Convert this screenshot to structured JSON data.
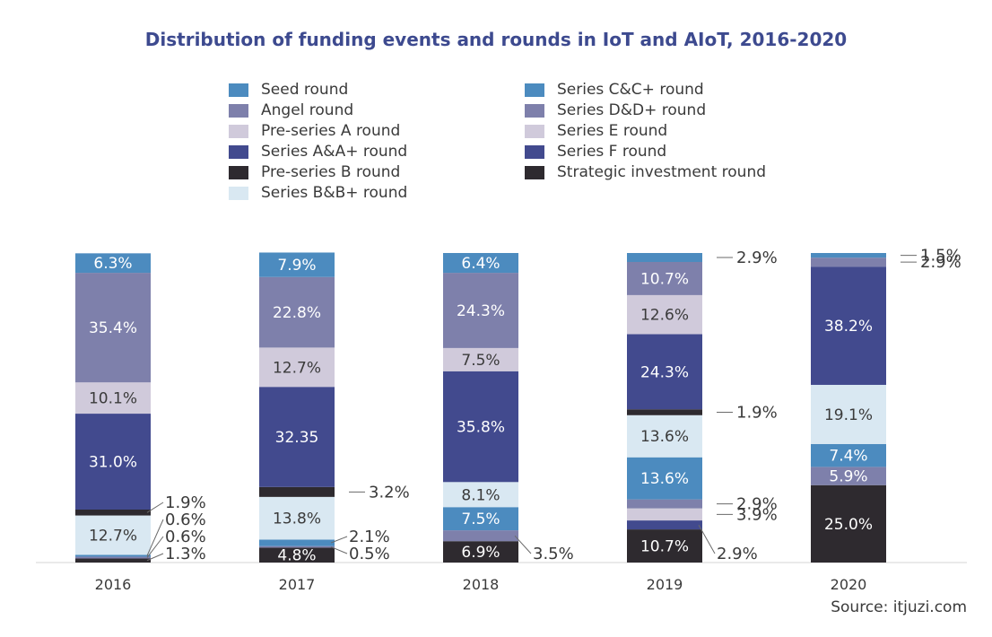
{
  "chart_data": {
    "type": "bar",
    "stacked": true,
    "title": "Distribution of funding events and rounds in IoT and AIoT, 2016-2020",
    "source": "Source: itjuzi.com",
    "legend_position": "top",
    "grid": false,
    "categories": [
      "2016",
      "2017",
      "2018",
      "2019",
      "2020"
    ],
    "series": [
      {
        "name": "Strategic investment round",
        "color": "#2e2a2f",
        "values": [
          1.3,
          4.8,
          6.9,
          10.7,
          25.0
        ],
        "labels": [
          "1.3%",
          "4.8%",
          "6.9%",
          "10.7%",
          "25.0%"
        ]
      },
      {
        "name": "Series F round",
        "color": "#424a8e",
        "values": [
          0,
          0,
          0,
          2.9,
          0
        ],
        "labels": [
          "",
          "",
          "",
          "2.9%",
          ""
        ]
      },
      {
        "name": "Series E round",
        "color": "#d0cadb",
        "values": [
          0,
          0,
          0,
          3.9,
          0
        ],
        "labels": [
          "",
          "",
          "",
          "3.9%",
          ""
        ]
      },
      {
        "name": "Series D&D+ round",
        "color": "#7e80ab",
        "values": [
          0.6,
          0.5,
          3.5,
          2.9,
          5.9
        ],
        "labels": [
          "0.6%",
          "0.5%",
          "3.5%",
          "2.9%",
          "5.9%"
        ]
      },
      {
        "name": "Series C&C+ round",
        "color": "#4c8bbf",
        "values": [
          0.6,
          2.1,
          7.5,
          13.6,
          7.4
        ],
        "labels": [
          "0.6%",
          "2.1%",
          "7.5%",
          "13.6%",
          "7.4%"
        ]
      },
      {
        "name": "Series B&B+ round",
        "color": "#d9e8f2",
        "values": [
          12.7,
          13.8,
          8.1,
          13.6,
          19.1
        ],
        "labels": [
          "12.7%",
          "13.8%",
          "8.1%",
          "13.6%",
          "19.1%"
        ]
      },
      {
        "name": "Pre-series B round",
        "color": "#2e2a2f",
        "values": [
          1.9,
          3.2,
          0,
          1.9,
          0
        ],
        "labels": [
          "1.9%",
          "3.2%",
          "",
          "1.9%",
          ""
        ]
      },
      {
        "name": "Series A&A+ round",
        "color": "#424a8e",
        "values": [
          31.0,
          32.35,
          35.8,
          24.3,
          38.2
        ],
        "labels": [
          "31.0%",
          "32.35",
          "35.8%",
          "24.3%",
          "38.2%"
        ]
      },
      {
        "name": "Pre-series A round",
        "color": "#d0cadb",
        "values": [
          10.1,
          12.7,
          7.5,
          12.6,
          0
        ],
        "labels": [
          "10.1%",
          "12.7%",
          "7.5%",
          "12.6%",
          ""
        ]
      },
      {
        "name": "Angel round",
        "color": "#7e80ab",
        "values": [
          35.4,
          22.8,
          24.3,
          10.7,
          2.9
        ],
        "labels": [
          "35.4%",
          "22.8%",
          "24.3%",
          "10.7%",
          "2.9%"
        ]
      },
      {
        "name": "Seed round",
        "color": "#4c8bbf",
        "values": [
          6.3,
          7.9,
          6.4,
          2.9,
          1.5
        ],
        "labels": [
          "6.3%",
          "7.9%",
          "6.4%",
          "2.9%",
          "1.5%"
        ]
      }
    ],
    "legend": [
      {
        "name": "Seed round",
        "color": "#4c8bbf"
      },
      {
        "name": "Angel round",
        "color": "#7e80ab"
      },
      {
        "name": "Pre-series A round",
        "color": "#d0cadb"
      },
      {
        "name": "Series A&A+ round",
        "color": "#424a8e"
      },
      {
        "name": "Pre-series B round",
        "color": "#2e2a2f"
      },
      {
        "name": "Series B&B+ round",
        "color": "#d9e8f2"
      },
      {
        "name": "Series C&C+ round",
        "color": "#4c8bbf"
      },
      {
        "name": "Series D&D+ round",
        "color": "#7e80ab"
      },
      {
        "name": "Series E round",
        "color": "#d0cadb"
      },
      {
        "name": "Series F round",
        "color": "#424a8e"
      },
      {
        "name": "Strategic investment round",
        "color": "#2e2a2f"
      }
    ]
  }
}
